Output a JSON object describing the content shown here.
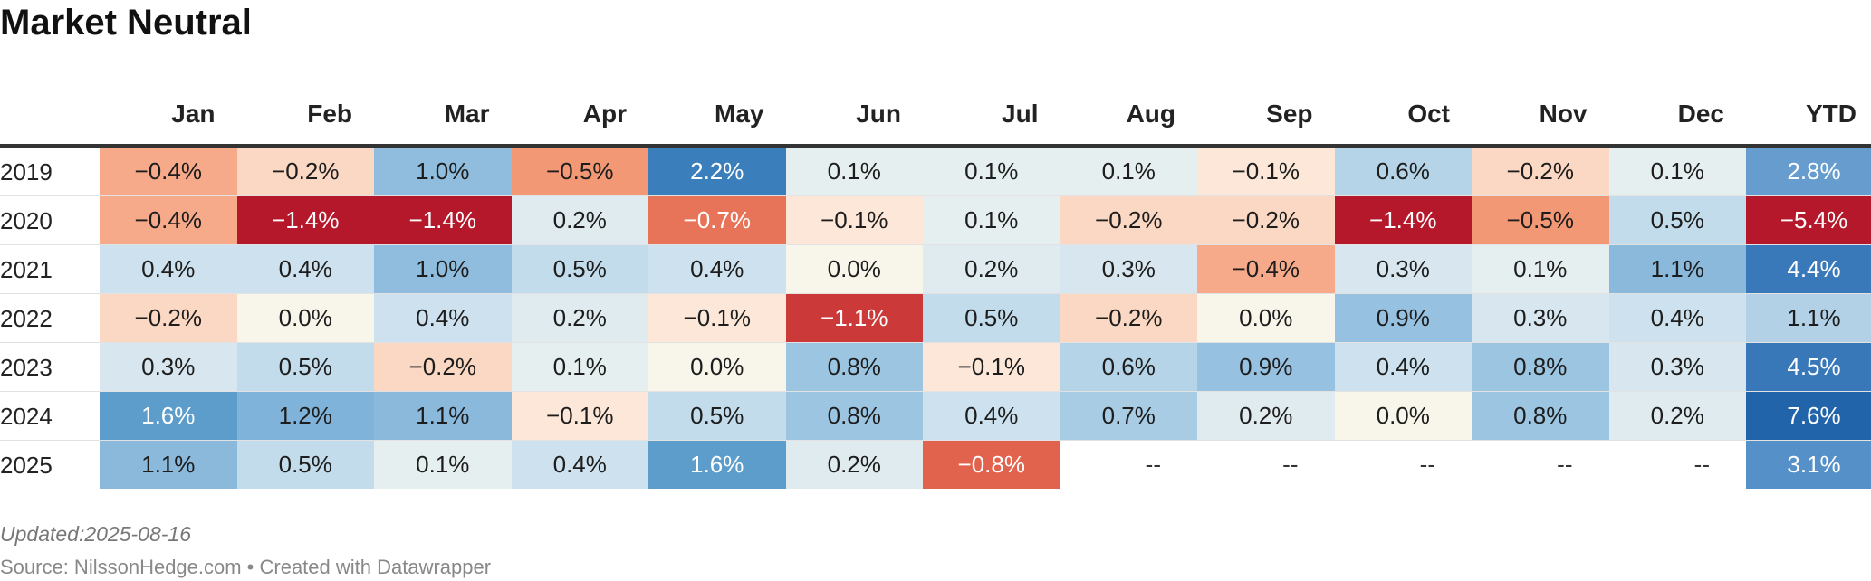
{
  "title": "Market Neutral",
  "chart_data": {
    "type": "heatmap",
    "title": "Market Neutral",
    "columns": [
      "Jan",
      "Feb",
      "Mar",
      "Apr",
      "May",
      "Jun",
      "Jul",
      "Aug",
      "Sep",
      "Oct",
      "Nov",
      "Dec",
      "YTD"
    ],
    "rows": [
      {
        "year": "2019",
        "values": [
          "−0.4%",
          "−0.2%",
          "1.0%",
          "−0.5%",
          "2.2%",
          "0.1%",
          "0.1%",
          "0.1%",
          "−0.1%",
          "0.6%",
          "−0.2%",
          "0.1%",
          "2.8%"
        ]
      },
      {
        "year": "2020",
        "values": [
          "−0.4%",
          "−1.4%",
          "−1.4%",
          "0.2%",
          "−0.7%",
          "−0.1%",
          "0.1%",
          "−0.2%",
          "−0.2%",
          "−1.4%",
          "−0.5%",
          "0.5%",
          "−5.4%"
        ]
      },
      {
        "year": "2021",
        "values": [
          "0.4%",
          "0.4%",
          "1.0%",
          "0.5%",
          "0.4%",
          "0.0%",
          "0.2%",
          "0.3%",
          "−0.4%",
          "0.3%",
          "0.1%",
          "1.1%",
          "4.4%"
        ]
      },
      {
        "year": "2022",
        "values": [
          "−0.2%",
          "0.0%",
          "0.4%",
          "0.2%",
          "−0.1%",
          "−1.1%",
          "0.5%",
          "−0.2%",
          "0.0%",
          "0.9%",
          "0.3%",
          "0.4%",
          "1.1%"
        ]
      },
      {
        "year": "2023",
        "values": [
          "0.3%",
          "0.5%",
          "−0.2%",
          "0.1%",
          "0.0%",
          "0.8%",
          "−0.1%",
          "0.6%",
          "0.9%",
          "0.4%",
          "0.8%",
          "0.3%",
          "4.5%"
        ]
      },
      {
        "year": "2024",
        "values": [
          "1.6%",
          "1.2%",
          "1.1%",
          "−0.1%",
          "0.5%",
          "0.8%",
          "0.4%",
          "0.7%",
          "0.2%",
          "0.0%",
          "0.8%",
          "0.2%",
          "7.6%"
        ]
      },
      {
        "year": "2025",
        "values": [
          "1.1%",
          "0.5%",
          "0.1%",
          "0.4%",
          "1.6%",
          "0.2%",
          "−0.8%",
          "--",
          "--",
          "--",
          "--",
          "--",
          "3.1%"
        ]
      }
    ]
  },
  "footer": {
    "updated": "Updated:2025-08-16",
    "source": "Source: NilssonHedge.com • Created with Datawrapper"
  }
}
